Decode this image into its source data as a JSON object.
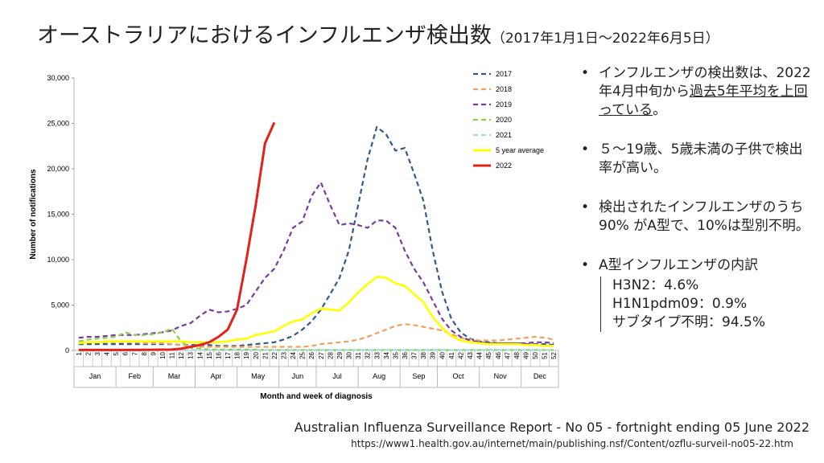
{
  "header": {
    "title": "オーストラリアにおけるインフルエンザ検出数",
    "subtitle": "（2017年1月1日～2022年6月5日）"
  },
  "chart_data": {
    "type": "line",
    "x_label": "Month and week of diagnosis",
    "y_label": "Number of notifications",
    "categories": [
      "1",
      "2",
      "3",
      "4",
      "5",
      "6",
      "7",
      "8",
      "9",
      "10",
      "11",
      "12",
      "13",
      "14",
      "15",
      "16",
      "17",
      "18",
      "19",
      "20",
      "21",
      "22",
      "23",
      "24",
      "25",
      "26",
      "27",
      "28",
      "29",
      "30",
      "31",
      "32",
      "33",
      "34",
      "35",
      "36",
      "37",
      "38",
      "39",
      "40",
      "41",
      "42",
      "43",
      "44",
      "45",
      "46",
      "47",
      "48",
      "49",
      "50",
      "51",
      "52"
    ],
    "months": [
      "Jan",
      "Feb",
      "Mar",
      "Apr",
      "May",
      "Jun",
      "Jul",
      "Aug",
      "Sep",
      "Oct",
      "Nov",
      "Dec"
    ],
    "ylim": [
      0,
      30000
    ],
    "yticks": [
      0,
      {
        "value": 5000,
        "label": "5,000"
      },
      {
        "value": 10000,
        "label": "10,000"
      },
      {
        "value": 15000,
        "label": "15,000"
      },
      {
        "value": 20000,
        "label": "20,000"
      },
      {
        "value": 25000,
        "label": "25,000"
      },
      {
        "value": 30000,
        "label": "30,000"
      }
    ],
    "grid": false,
    "legend": "upper right",
    "series": [
      {
        "name": "2017",
        "color": "#2f5b8a",
        "style": "dashed",
        "values": [
          700,
          700,
          700,
          700,
          700,
          700,
          700,
          700,
          700,
          700,
          700,
          600,
          600,
          600,
          600,
          500,
          500,
          500,
          600,
          700,
          800,
          900,
          1200,
          1600,
          2300,
          3200,
          4500,
          6200,
          8000,
          11000,
          16000,
          21000,
          24600,
          23800,
          22000,
          22300,
          19500,
          16500,
          11000,
          6500,
          3500,
          2000,
          1300,
          1000,
          900,
          800,
          800,
          800,
          700,
          700,
          700,
          600
        ]
      },
      {
        "name": "2018",
        "color": "#f5a05a",
        "style": "dashed",
        "values": [
          900,
          900,
          900,
          900,
          900,
          900,
          900,
          800,
          800,
          800,
          700,
          600,
          500,
          400,
          400,
          400,
          400,
          400,
          400,
          400,
          400,
          400,
          400,
          400,
          400,
          500,
          700,
          800,
          900,
          1000,
          1200,
          1500,
          1900,
          2300,
          2700,
          2900,
          2800,
          2600,
          2400,
          2200,
          1800,
          1400,
          1200,
          1100,
          1100,
          1100,
          1200,
          1300,
          1400,
          1500,
          1400,
          1200
        ]
      },
      {
        "name": "2019",
        "color": "#7a3aa0",
        "style": "dashed",
        "values": [
          1400,
          1500,
          1500,
          1600,
          1700,
          1700,
          1700,
          1800,
          1900,
          2000,
          2200,
          2700,
          3000,
          3800,
          4500,
          4200,
          4300,
          4600,
          5000,
          6500,
          8000,
          9000,
          11000,
          13500,
          14200,
          17000,
          18500,
          16000,
          13800,
          14000,
          13800,
          13500,
          14300,
          14300,
          13500,
          11000,
          9000,
          7500,
          5500,
          3500,
          2200,
          1500,
          1100,
          900,
          800,
          800,
          800,
          800,
          800,
          900,
          900,
          800
        ]
      },
      {
        "name": "2020",
        "color": "#8fcf4f",
        "style": "dashed",
        "values": [
          1000,
          1200,
          1300,
          1400,
          1500,
          2000,
          1700,
          1700,
          1800,
          2000,
          2400,
          1000,
          300,
          200,
          100,
          100,
          100,
          100,
          100,
          100,
          50,
          50,
          50,
          50,
          50,
          50,
          50,
          50,
          50,
          50,
          50,
          50,
          50,
          50,
          50,
          50,
          50,
          50,
          50,
          50,
          50,
          50,
          50,
          50,
          50,
          50,
          50,
          50,
          50,
          50,
          50,
          50
        ]
      },
      {
        "name": "2021",
        "color": "#9ed8e6",
        "style": "dashed",
        "values": [
          50,
          50,
          50,
          50,
          50,
          50,
          50,
          50,
          50,
          50,
          50,
          50,
          50,
          50,
          50,
          50,
          50,
          50,
          50,
          50,
          50,
          50,
          50,
          50,
          50,
          50,
          50,
          50,
          50,
          50,
          50,
          50,
          50,
          50,
          50,
          50,
          50,
          50,
          50,
          50,
          50,
          50,
          50,
          50,
          50,
          50,
          50,
          50,
          50,
          50,
          50,
          50
        ]
      },
      {
        "name": "5 year average",
        "color": "#ffff00",
        "style": "solid",
        "values": [
          800,
          900,
          900,
          1000,
          1000,
          1000,
          1000,
          1000,
          1000,
          1000,
          1000,
          1000,
          900,
          900,
          900,
          900,
          1000,
          1200,
          1300,
          1700,
          1900,
          2100,
          2700,
          3200,
          3400,
          4100,
          4600,
          4500,
          4400,
          5300,
          6400,
          7300,
          8100,
          8000,
          7400,
          7100,
          6200,
          5300,
          3700,
          2500,
          1600,
          1100,
          900,
          800,
          700,
          700,
          700,
          700,
          600,
          600,
          500,
          500
        ]
      },
      {
        "name": "2022",
        "color": "#e32119",
        "style": "solid",
        "values": [
          50,
          50,
          50,
          50,
          50,
          60,
          60,
          70,
          80,
          90,
          100,
          200,
          400,
          600,
          900,
          1500,
          2300,
          4500,
          10000,
          16000,
          22800,
          25100,
          null,
          null,
          null,
          null,
          null,
          null,
          null,
          null,
          null,
          null,
          null,
          null,
          null,
          null,
          null,
          null,
          null,
          null,
          null,
          null,
          null,
          null,
          null,
          null,
          null,
          null,
          null,
          null,
          null,
          null
        ]
      }
    ]
  },
  "bullets": [
    {
      "before": "インフルエンザの検出数は、2022年4月中旬から",
      "underlined": "過去5年平均を上回っている",
      "after": "。"
    },
    {
      "text": "５～19歳、5歳未満の子供で検出率が高い。"
    },
    {
      "text": "検出されたインフルエンザのうち90% がA型で、10%は型別不明。"
    },
    {
      "text": "A型インフルエンザの内訳",
      "sub": [
        "H3N2：4.6%",
        "H1N1pdm09：0.9%",
        "サブタイプ不明：94.5%"
      ]
    }
  ],
  "source": {
    "report": "Australian Influenza Surveillance Report - No 05 - fortnight ending 05 June 2022",
    "url": "https://www1.health.gov.au/internet/main/publishing.nsf/Content/ozflu-surveil-no05-22.htm"
  }
}
